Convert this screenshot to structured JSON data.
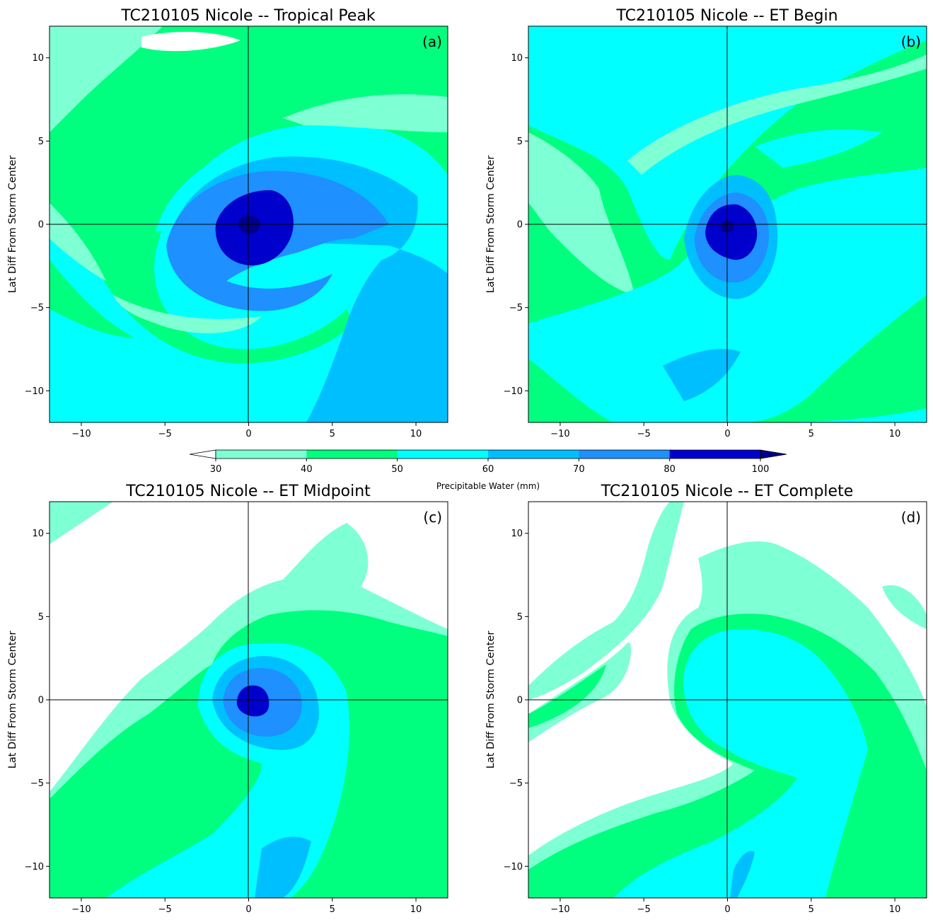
{
  "chart_data": {
    "type": "contour",
    "variable": "Precipitable Water (mm)",
    "colorbar": {
      "label": "Precipitable Water (mm)",
      "levels": [
        30,
        40,
        50,
        60,
        70,
        80,
        100
      ],
      "tick_labels": [
        "30",
        "40",
        "50",
        "60",
        "70",
        "80",
        "100"
      ],
      "colors": [
        "#7fffd4",
        "#00ff7f",
        "#00ffff",
        "#00bfff",
        "#1e90ff",
        "#0000cd"
      ],
      "extend": "both",
      "under_color": "#ffffff",
      "over_color": "#00008b"
    },
    "axes": {
      "xlim": [
        -11.9,
        11.9
      ],
      "ylim": [
        -11.9,
        11.9
      ],
      "xticks": [
        -10,
        -5,
        0,
        5,
        10
      ],
      "yticks": [
        -10,
        -5,
        0,
        5,
        10
      ],
      "xtick_labels": [
        "−10",
        "−5",
        "0",
        "5",
        "10"
      ],
      "ytick_labels": [
        "−10",
        "−5",
        "0",
        "5",
        "10"
      ],
      "ylabel": "Lat Diff From Storm Center",
      "crosshair_at": [
        0,
        0
      ]
    },
    "panels": [
      {
        "id": "a",
        "title": "TC210105 Nicole -- Tropical Peak",
        "label": "(a)",
        "center_max_pw": 100,
        "core_radius_deg": 2.2,
        "show_ylabel": true
      },
      {
        "id": "b",
        "title": "TC210105 Nicole -- ET Begin",
        "label": "(b)",
        "center_max_pw": 100,
        "core_radius_deg": 1.8,
        "show_ylabel": true
      },
      {
        "id": "c",
        "title": "TC210105 Nicole -- ET Midpoint",
        "label": "(c)",
        "center_max_pw": 85,
        "core_radius_deg": 0.8,
        "show_ylabel": true
      },
      {
        "id": "d",
        "title": "TC210105 Nicole -- ET Complete",
        "label": "(d)",
        "center_max_pw": 60,
        "core_radius_deg": 0,
        "show_ylabel": true
      }
    ]
  }
}
